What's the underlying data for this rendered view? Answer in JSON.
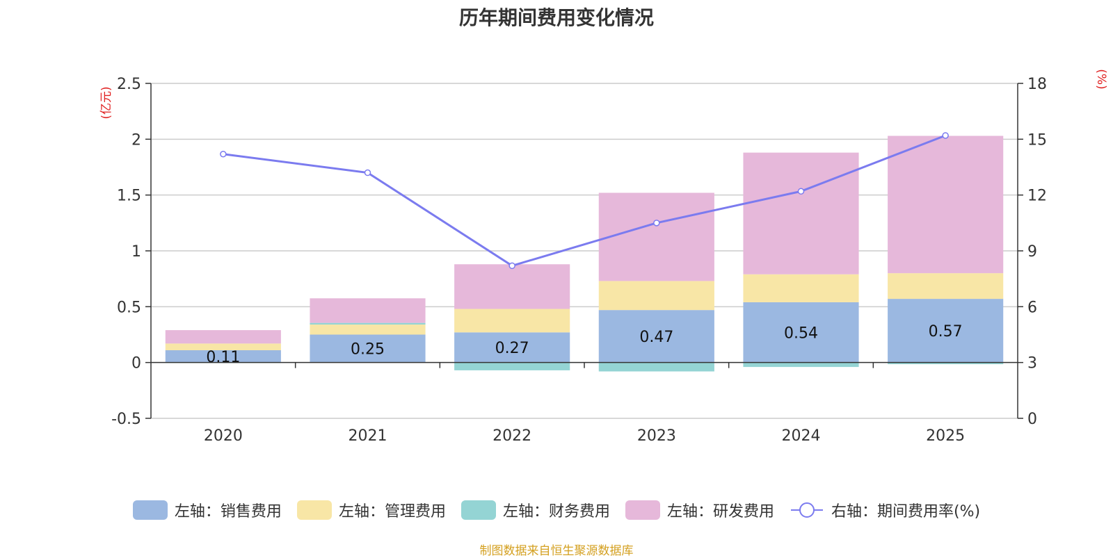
{
  "chart_data": {
    "type": "bar",
    "stacked": true,
    "title": "历年期间费用变化情况",
    "categories": [
      "2020",
      "2021",
      "2022",
      "2023",
      "2024",
      "2025"
    ],
    "left_axis": {
      "unit": "(亿元)",
      "ylim": [
        -0.5,
        2.5
      ],
      "ticks": [
        "-0.5",
        "0",
        "0.5",
        "1",
        "1.5",
        "2",
        "2.5"
      ]
    },
    "right_axis": {
      "unit": "(%)",
      "ylim": [
        0,
        18
      ],
      "ticks": [
        "0",
        "3",
        "6",
        "9",
        "12",
        "15",
        "18"
      ]
    },
    "series": [
      {
        "name": "左轴：销售费用",
        "color": "#9bb8e1",
        "values": [
          0.11,
          0.25,
          0.27,
          0.47,
          0.54,
          0.57
        ],
        "labels": [
          "0.11",
          "0.25",
          "0.27",
          "0.47",
          "0.54",
          "0.57"
        ]
      },
      {
        "name": "左轴：管理费用",
        "color": "#f8e6a6",
        "values": [
          0.06,
          0.09,
          0.21,
          0.26,
          0.25,
          0.23
        ]
      },
      {
        "name": "左轴：财务费用",
        "color": "#94d4d4",
        "values": [
          -0.005,
          0.015,
          -0.07,
          -0.08,
          -0.04,
          -0.015
        ]
      },
      {
        "name": "左轴：研发费用",
        "color": "#e6b8da",
        "values": [
          0.12,
          0.22,
          0.4,
          0.79,
          1.09,
          1.23
        ]
      }
    ],
    "line": {
      "name": "右轴：期间费用率(%)",
      "color": "#7b7bef",
      "values": [
        14.2,
        13.2,
        8.2,
        10.5,
        12.2,
        15.2
      ]
    }
  },
  "source": "制图数据来自恒生聚源数据库"
}
